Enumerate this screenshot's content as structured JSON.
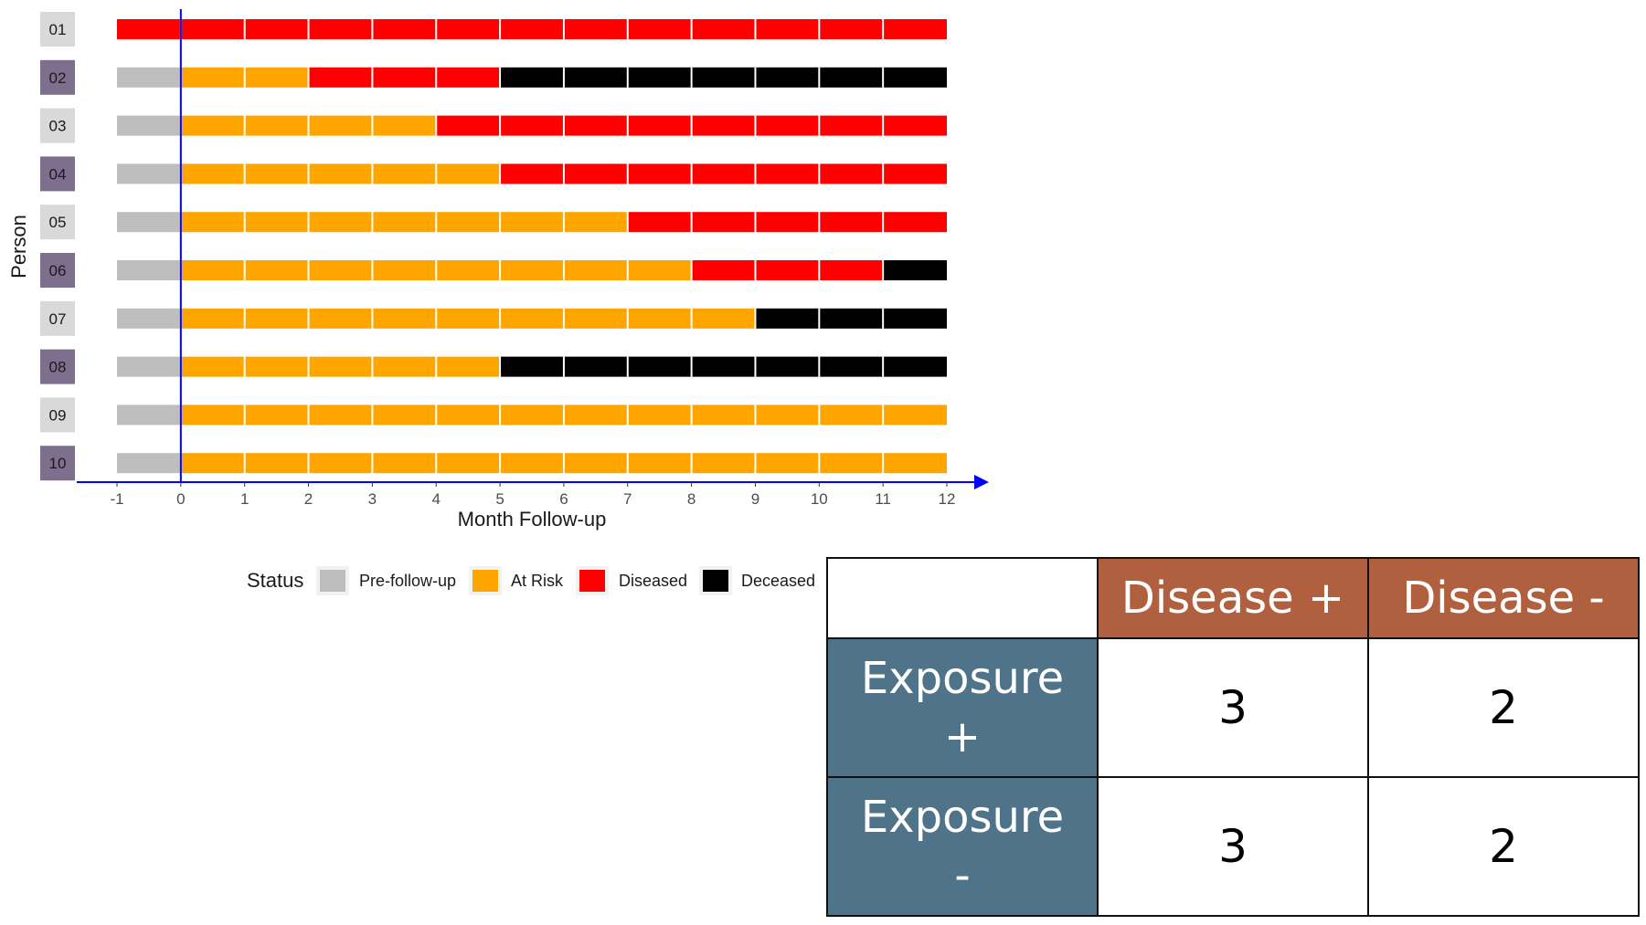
{
  "colors": {
    "pre_follow_up": "#BEBEBE",
    "at_risk": "#FFA500",
    "diseased": "#FF0000",
    "deceased": "#000000",
    "axis": "#0000FF",
    "person_label_light": "#D9D9D9",
    "person_label_dark": "#7E6F8F",
    "table_header": "#B0603F",
    "table_row_header": "#4F7489"
  },
  "chart_data": {
    "type": "bar",
    "orientation": "horizontal-timeline",
    "xlabel": "Month Follow-up",
    "ylabel": "Person",
    "xlim": [
      -1,
      12
    ],
    "x_ticks": [
      "-1",
      "0",
      "1",
      "2",
      "3",
      "4",
      "5",
      "6",
      "7",
      "8",
      "9",
      "10",
      "11",
      "12"
    ],
    "legend": {
      "title": "Status",
      "position": "bottom",
      "entries": [
        {
          "key": "pre",
          "label": "Pre-follow-up",
          "color": "#BEBEBE"
        },
        {
          "key": "risk",
          "label": "At Risk",
          "color": "#FFA500"
        },
        {
          "key": "dis",
          "label": "Diseased",
          "color": "#FF0000"
        },
        {
          "key": "dec",
          "label": "Deceased",
          "color": "#000000"
        }
      ]
    },
    "persons": [
      {
        "id": "01",
        "segments": [
          {
            "status": "dis",
            "from": -1,
            "to": 12
          }
        ]
      },
      {
        "id": "02",
        "segments": [
          {
            "status": "pre",
            "from": -1,
            "to": 0
          },
          {
            "status": "risk",
            "from": 0,
            "to": 2
          },
          {
            "status": "dis",
            "from": 2,
            "to": 5
          },
          {
            "status": "dec",
            "from": 5,
            "to": 12
          }
        ]
      },
      {
        "id": "03",
        "segments": [
          {
            "status": "pre",
            "from": -1,
            "to": 0
          },
          {
            "status": "risk",
            "from": 0,
            "to": 4
          },
          {
            "status": "dis",
            "from": 4,
            "to": 12
          }
        ]
      },
      {
        "id": "04",
        "segments": [
          {
            "status": "pre",
            "from": -1,
            "to": 0
          },
          {
            "status": "risk",
            "from": 0,
            "to": 5
          },
          {
            "status": "dis",
            "from": 5,
            "to": 12
          }
        ]
      },
      {
        "id": "05",
        "segments": [
          {
            "status": "pre",
            "from": -1,
            "to": 0
          },
          {
            "status": "risk",
            "from": 0,
            "to": 7
          },
          {
            "status": "dis",
            "from": 7,
            "to": 12
          }
        ]
      },
      {
        "id": "06",
        "segments": [
          {
            "status": "pre",
            "from": -1,
            "to": 0
          },
          {
            "status": "risk",
            "from": 0,
            "to": 8
          },
          {
            "status": "dis",
            "from": 8,
            "to": 11
          },
          {
            "status": "dec",
            "from": 11,
            "to": 12
          }
        ]
      },
      {
        "id": "07",
        "segments": [
          {
            "status": "pre",
            "from": -1,
            "to": 0
          },
          {
            "status": "risk",
            "from": 0,
            "to": 9
          },
          {
            "status": "dec",
            "from": 9,
            "to": 12
          }
        ]
      },
      {
        "id": "08",
        "segments": [
          {
            "status": "pre",
            "from": -1,
            "to": 0
          },
          {
            "status": "risk",
            "from": 0,
            "to": 5
          },
          {
            "status": "dec",
            "from": 5,
            "to": 12
          }
        ]
      },
      {
        "id": "09",
        "segments": [
          {
            "status": "pre",
            "from": -1,
            "to": 0
          },
          {
            "status": "risk",
            "from": 0,
            "to": 12
          }
        ]
      },
      {
        "id": "10",
        "segments": [
          {
            "status": "pre",
            "from": -1,
            "to": 0
          },
          {
            "status": "risk",
            "from": 0,
            "to": 12
          }
        ]
      }
    ]
  },
  "table": {
    "corner": "",
    "col_headers": [
      "Disease +",
      "Disease -"
    ],
    "rows": [
      {
        "header_line1": "Exposure",
        "header_line2": "+",
        "values": [
          "3",
          "2"
        ]
      },
      {
        "header_line1": "Exposure",
        "header_line2": "-",
        "values": [
          "3",
          "2"
        ]
      }
    ]
  }
}
